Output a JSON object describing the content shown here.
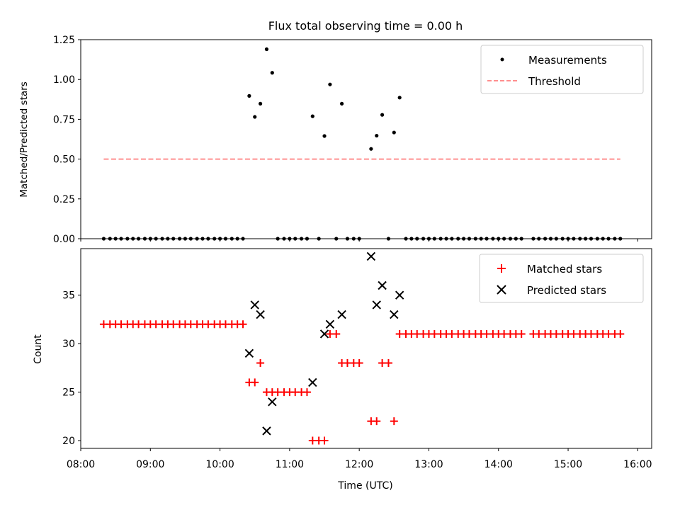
{
  "chart_data": [
    {
      "type": "scatter",
      "title": "Flux total observing time = 0.00 h",
      "xlabel": "",
      "ylabel": "Matched/Predicted stars",
      "xlim": [
        8.0,
        16.2
      ],
      "ylim": [
        0.0,
        1.25
      ],
      "yticks": [
        0.0,
        0.25,
        0.5,
        0.75,
        1.0,
        1.25
      ],
      "ytick_labels": [
        "0.00",
        "0.25",
        "0.50",
        "0.75",
        "1.00",
        "1.25"
      ],
      "legend_position": "upper right",
      "series": [
        {
          "name": "Measurements",
          "label": "Measurements",
          "marker": "dot",
          "color": "#000000",
          "x": [
            8.33,
            8.42,
            8.5,
            8.58,
            8.67,
            8.75,
            8.83,
            8.92,
            9.0,
            9.08,
            9.17,
            9.25,
            9.33,
            9.42,
            9.5,
            9.58,
            9.67,
            9.75,
            9.83,
            9.92,
            10.0,
            10.08,
            10.17,
            10.25,
            10.33,
            10.42,
            10.5,
            10.58,
            10.67,
            10.75,
            10.83,
            10.92,
            11.0,
            11.08,
            11.17,
            11.25,
            11.33,
            11.42,
            11.5,
            11.58,
            11.67,
            11.75,
            11.83,
            11.92,
            12.0,
            12.17,
            12.25,
            12.33,
            12.42,
            12.5,
            12.58,
            12.67,
            12.75,
            12.83,
            12.92,
            13.0,
            13.08,
            13.17,
            13.25,
            13.33,
            13.42,
            13.5,
            13.58,
            13.67,
            13.75,
            13.83,
            13.92,
            14.0,
            14.08,
            14.17,
            14.25,
            14.33,
            14.5,
            14.58,
            14.67,
            14.75,
            14.83,
            14.92,
            15.0,
            15.08,
            15.17,
            15.25,
            15.33,
            15.42,
            15.5,
            15.58,
            15.67,
            15.75
          ],
          "y": [
            0,
            0,
            0,
            0,
            0,
            0,
            0,
            0,
            0,
            0,
            0,
            0,
            0,
            0,
            0,
            0,
            0,
            0,
            0,
            0,
            0,
            0,
            0,
            0,
            0,
            0.897,
            0.765,
            0.848,
            1.19,
            1.042,
            0,
            0,
            0,
            0,
            0,
            0,
            0.769,
            0,
            0.645,
            0.969,
            0,
            0.848,
            0,
            0,
            0,
            0.564,
            0.647,
            0.778,
            0,
            0.667,
            0.886,
            0,
            0,
            0,
            0,
            0,
            0,
            0,
            0,
            0,
            0,
            0,
            0,
            0,
            0,
            0,
            0,
            0,
            0,
            0,
            0,
            0,
            0,
            0,
            0,
            0,
            0,
            0,
            0,
            0,
            0,
            0,
            0,
            0,
            0,
            0,
            0,
            0
          ]
        },
        {
          "name": "Threshold",
          "label": "Threshold",
          "style": "dashed",
          "color": "#ff7f7f",
          "x": [
            8.33,
            15.75
          ],
          "y": [
            0.5,
            0.5
          ]
        }
      ]
    },
    {
      "type": "scatter",
      "title": "",
      "xlabel": "Time (UTC)",
      "ylabel": "Count",
      "xlim": [
        8.0,
        16.2
      ],
      "ylim": [
        19.2,
        39.8
      ],
      "xticks": [
        8,
        9,
        10,
        11,
        12,
        13,
        14,
        15,
        16
      ],
      "xtick_labels": [
        "08:00",
        "09:00",
        "10:00",
        "11:00",
        "12:00",
        "13:00",
        "14:00",
        "15:00",
        "16:00"
      ],
      "yticks": [
        20,
        25,
        30,
        35
      ],
      "ytick_labels": [
        "20",
        "25",
        "30",
        "35"
      ],
      "legend_position": "upper right",
      "series": [
        {
          "name": "Matched stars",
          "label": "Matched stars",
          "marker": "plus",
          "color": "#ff0000",
          "x": [
            8.33,
            8.42,
            8.5,
            8.58,
            8.67,
            8.75,
            8.83,
            8.92,
            9.0,
            9.08,
            9.17,
            9.25,
            9.33,
            9.42,
            9.5,
            9.58,
            9.67,
            9.75,
            9.83,
            9.92,
            10.0,
            10.08,
            10.17,
            10.25,
            10.33,
            10.42,
            10.5,
            10.58,
            10.67,
            10.75,
            10.83,
            10.92,
            11.0,
            11.08,
            11.17,
            11.25,
            11.33,
            11.42,
            11.5,
            11.58,
            11.67,
            11.75,
            11.83,
            11.92,
            12.0,
            12.17,
            12.25,
            12.33,
            12.42,
            12.5,
            12.58,
            12.67,
            12.75,
            12.83,
            12.92,
            13.0,
            13.08,
            13.17,
            13.25,
            13.33,
            13.42,
            13.5,
            13.58,
            13.67,
            13.75,
            13.83,
            13.92,
            14.0,
            14.08,
            14.17,
            14.25,
            14.33,
            14.5,
            14.58,
            14.67,
            14.75,
            14.83,
            14.92,
            15.0,
            15.08,
            15.17,
            15.25,
            15.33,
            15.42,
            15.5,
            15.58,
            15.67,
            15.75
          ],
          "y": [
            32,
            32,
            32,
            32,
            32,
            32,
            32,
            32,
            32,
            32,
            32,
            32,
            32,
            32,
            32,
            32,
            32,
            32,
            32,
            32,
            32,
            32,
            32,
            32,
            32,
            26,
            26,
            28,
            25,
            25,
            25,
            25,
            25,
            25,
            25,
            25,
            20,
            20,
            20,
            31,
            31,
            28,
            28,
            28,
            28,
            22,
            22,
            28,
            28,
            22,
            31,
            31,
            31,
            31,
            31,
            31,
            31,
            31,
            31,
            31,
            31,
            31,
            31,
            31,
            31,
            31,
            31,
            31,
            31,
            31,
            31,
            31,
            31,
            31,
            31,
            31,
            31,
            31,
            31,
            31,
            31,
            31,
            31,
            31,
            31,
            31,
            31,
            31
          ]
        },
        {
          "name": "Predicted stars",
          "label": "Predicted stars",
          "marker": "x",
          "color": "#000000",
          "x": [
            10.42,
            10.5,
            10.58,
            10.67,
            10.75,
            11.33,
            11.5,
            11.58,
            11.75,
            12.17,
            12.25,
            12.33,
            12.5,
            12.58
          ],
          "y": [
            29,
            34,
            33,
            21,
            24,
            26,
            31,
            32,
            33,
            39,
            34,
            36,
            33,
            35
          ]
        }
      ]
    }
  ]
}
